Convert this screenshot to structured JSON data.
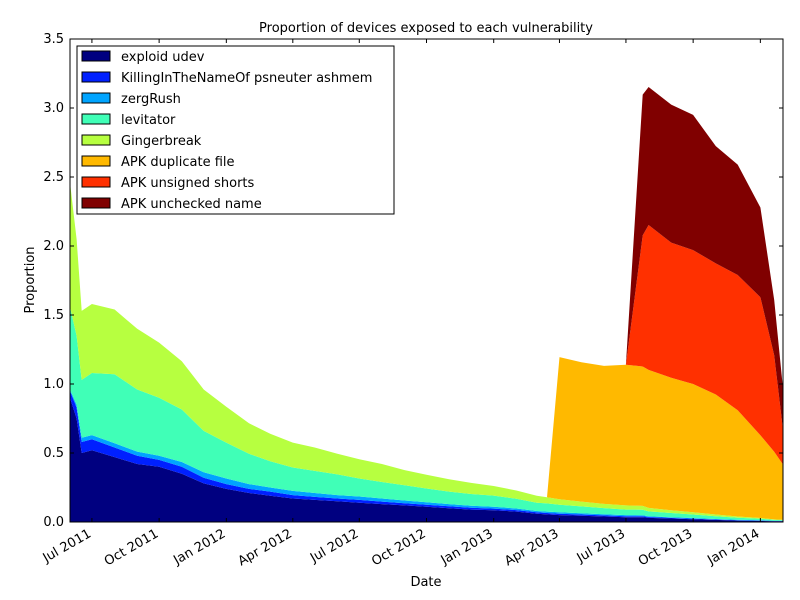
{
  "chart_data": {
    "type": "area",
    "stacked": true,
    "title": "Proportion of devices exposed to each vulnerability",
    "xlabel": "Date",
    "ylabel": "Proportion",
    "xlim": [
      "2011-06-01",
      "2014-02-01"
    ],
    "ylim": [
      0,
      3.5
    ],
    "yticks": [
      0.0,
      0.5,
      1.0,
      1.5,
      2.0,
      2.5,
      3.0,
      3.5
    ],
    "ytick_labels": [
      "0.0",
      "0.5",
      "1.0",
      "1.5",
      "2.0",
      "2.5",
      "3.0",
      "3.5"
    ],
    "xticks": [
      "2011-07-01",
      "2011-10-01",
      "2012-01-01",
      "2012-04-01",
      "2012-07-01",
      "2012-10-01",
      "2013-01-01",
      "2013-04-01",
      "2013-07-01",
      "2013-10-01",
      "2014-01-01"
    ],
    "xtick_labels": [
      "Jul 2011",
      "Oct 2011",
      "Jan 2012",
      "Apr 2012",
      "Jul 2012",
      "Oct 2012",
      "Jan 2013",
      "Apr 2013",
      "Jul 2013",
      "Oct 2013",
      "Jan 2014"
    ],
    "grid": false,
    "legend_position": "top-left",
    "dates": [
      "2011-06-01",
      "2011-06-10",
      "2011-06-17",
      "2011-07-01",
      "2011-08-01",
      "2011-09-01",
      "2011-10-01",
      "2011-11-01",
      "2011-12-01",
      "2012-01-01",
      "2012-02-01",
      "2012-03-01",
      "2012-04-01",
      "2012-05-01",
      "2012-06-01",
      "2012-07-01",
      "2012-08-01",
      "2012-09-01",
      "2012-10-01",
      "2012-11-01",
      "2012-12-01",
      "2013-01-01",
      "2013-02-01",
      "2013-03-01",
      "2013-03-15",
      "2013-04-01",
      "2013-05-01",
      "2013-06-01",
      "2013-07-01",
      "2013-07-24",
      "2013-08-01",
      "2013-09-01",
      "2013-10-01",
      "2013-11-01",
      "2013-12-01",
      "2014-01-01",
      "2014-01-20",
      "2014-02-01"
    ],
    "series": [
      {
        "name": "exploid udev",
        "color": "#000080",
        "values": [
          0.9,
          0.75,
          0.5,
          0.52,
          0.47,
          0.42,
          0.4,
          0.35,
          0.28,
          0.24,
          0.21,
          0.19,
          0.17,
          0.16,
          0.15,
          0.14,
          0.13,
          0.12,
          0.11,
          0.1,
          0.09,
          0.085,
          0.075,
          0.06,
          0.055,
          0.05,
          0.045,
          0.04,
          0.035,
          0.035,
          0.03,
          0.025,
          0.02,
          0.015,
          0.01,
          0.008,
          0.005,
          0.005
        ]
      },
      {
        "name": "KillingInTheNameOf psneuter ashmem",
        "color": "#0020ff",
        "values": [
          0.05,
          0.08,
          0.08,
          0.08,
          0.07,
          0.06,
          0.05,
          0.05,
          0.04,
          0.035,
          0.03,
          0.03,
          0.025,
          0.022,
          0.02,
          0.02,
          0.018,
          0.016,
          0.015,
          0.014,
          0.013,
          0.012,
          0.011,
          0.01,
          0.01,
          0.01,
          0.009,
          0.008,
          0.007,
          0.007,
          0.006,
          0.005,
          0.004,
          0.003,
          0.003,
          0.002,
          0.002,
          0.002
        ]
      },
      {
        "name": "zergRush",
        "color": "#00a4ff",
        "values": [
          0.01,
          0.02,
          0.03,
          0.03,
          0.03,
          0.03,
          0.03,
          0.035,
          0.04,
          0.04,
          0.035,
          0.03,
          0.03,
          0.028,
          0.025,
          0.025,
          0.022,
          0.02,
          0.018,
          0.016,
          0.015,
          0.014,
          0.012,
          0.01,
          0.01,
          0.01,
          0.009,
          0.008,
          0.008,
          0.007,
          0.006,
          0.005,
          0.005,
          0.004,
          0.003,
          0.003,
          0.002,
          0.002
        ]
      },
      {
        "name": "levitator",
        "color": "#40ffb7",
        "values": [
          0.6,
          0.5,
          0.42,
          0.45,
          0.5,
          0.45,
          0.42,
          0.38,
          0.3,
          0.26,
          0.22,
          0.19,
          0.17,
          0.16,
          0.15,
          0.13,
          0.12,
          0.11,
          0.1,
          0.09,
          0.085,
          0.08,
          0.07,
          0.06,
          0.06,
          0.055,
          0.05,
          0.045,
          0.04,
          0.04,
          0.035,
          0.03,
          0.025,
          0.02,
          0.015,
          0.01,
          0.006,
          0.005
        ]
      },
      {
        "name": "Gingerbreak",
        "color": "#b7ff40",
        "values": [
          0.9,
          0.7,
          0.5,
          0.5,
          0.47,
          0.44,
          0.4,
          0.35,
          0.3,
          0.26,
          0.22,
          0.2,
          0.18,
          0.17,
          0.15,
          0.14,
          0.13,
          0.11,
          0.1,
          0.09,
          0.08,
          0.07,
          0.06,
          0.05,
          0.045,
          0.04,
          0.035,
          0.03,
          0.03,
          0.028,
          0.025,
          0.02,
          0.016,
          0.012,
          0.009,
          0.006,
          0.004,
          0.003
        ]
      },
      {
        "name": "APK duplicate file",
        "color": "#ffb900",
        "values": [
          0,
          0,
          0,
          0,
          0,
          0,
          0,
          0,
          0,
          0,
          0,
          0,
          0,
          0,
          0,
          0,
          0,
          0,
          0,
          0,
          0,
          0,
          0,
          0,
          0,
          1.03,
          1.01,
          1.0,
          1.02,
          1.01,
          1.0,
          0.96,
          0.93,
          0.87,
          0.77,
          0.6,
          0.49,
          0.4
        ]
      },
      {
        "name": "APK unsigned shorts",
        "color": "#ff3000",
        "values": [
          0,
          0,
          0,
          0,
          0,
          0,
          0,
          0,
          0,
          0,
          0,
          0,
          0,
          0,
          0,
          0,
          0,
          0,
          0,
          0,
          0,
          0,
          0,
          0,
          0,
          0,
          0,
          0,
          0,
          0.95,
          1.05,
          0.98,
          0.97,
          0.95,
          0.98,
          1.0,
          0.7,
          0.25
        ]
      },
      {
        "name": "APK unchecked name",
        "color": "#800000",
        "values": [
          0,
          0,
          0,
          0,
          0,
          0,
          0,
          0,
          0,
          0,
          0,
          0,
          0,
          0,
          0,
          0,
          0,
          0,
          0,
          0,
          0,
          0,
          0,
          0,
          0,
          0,
          0,
          0,
          0,
          1.02,
          1.0,
          1.0,
          0.98,
          0.85,
          0.8,
          0.65,
          0.4,
          0.3
        ]
      }
    ]
  }
}
